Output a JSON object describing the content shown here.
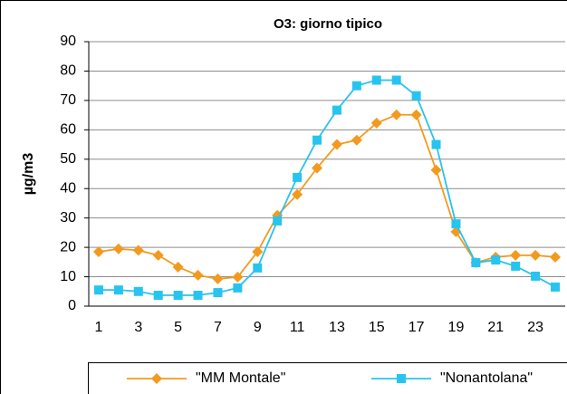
{
  "chart_data": {
    "type": "line",
    "title": "O3: giorno tipico",
    "y_label": "µg/m3",
    "categories": [
      1,
      null,
      3,
      null,
      5,
      null,
      7,
      null,
      9,
      null,
      11,
      null,
      13,
      null,
      15,
      null,
      17,
      null,
      19,
      null,
      21,
      null,
      23,
      null
    ],
    "series": [
      {
        "name": "\"MM Montale\"",
        "color": "#f39a1e",
        "marker": "diamond",
        "values": [
          18.5,
          19.5,
          19,
          17.3,
          13.3,
          10.5,
          9.3,
          9.9,
          18.5,
          30.9,
          38,
          47,
          55,
          56.5,
          62.3,
          65.1,
          65.1,
          46.3,
          25.3,
          14.8,
          16.7,
          17.3,
          17.3,
          16.7
        ]
      },
      {
        "name": "\"Nonantolana\"",
        "color": "#27c4ef",
        "marker": "square",
        "values": [
          5.5,
          5.5,
          5,
          3.7,
          3.7,
          3.7,
          4.6,
          6.2,
          13,
          29,
          43.8,
          56.5,
          66.7,
          75,
          76.9,
          76.9,
          71.6,
          55,
          28,
          14.8,
          15.7,
          13.6,
          10.2,
          6.5
        ]
      }
    ],
    "ylim": [
      0,
      90
    ],
    "yticks": [
      0,
      10,
      20,
      30,
      40,
      50,
      60,
      70,
      80,
      90
    ],
    "grid": true,
    "legend": "bottom"
  }
}
